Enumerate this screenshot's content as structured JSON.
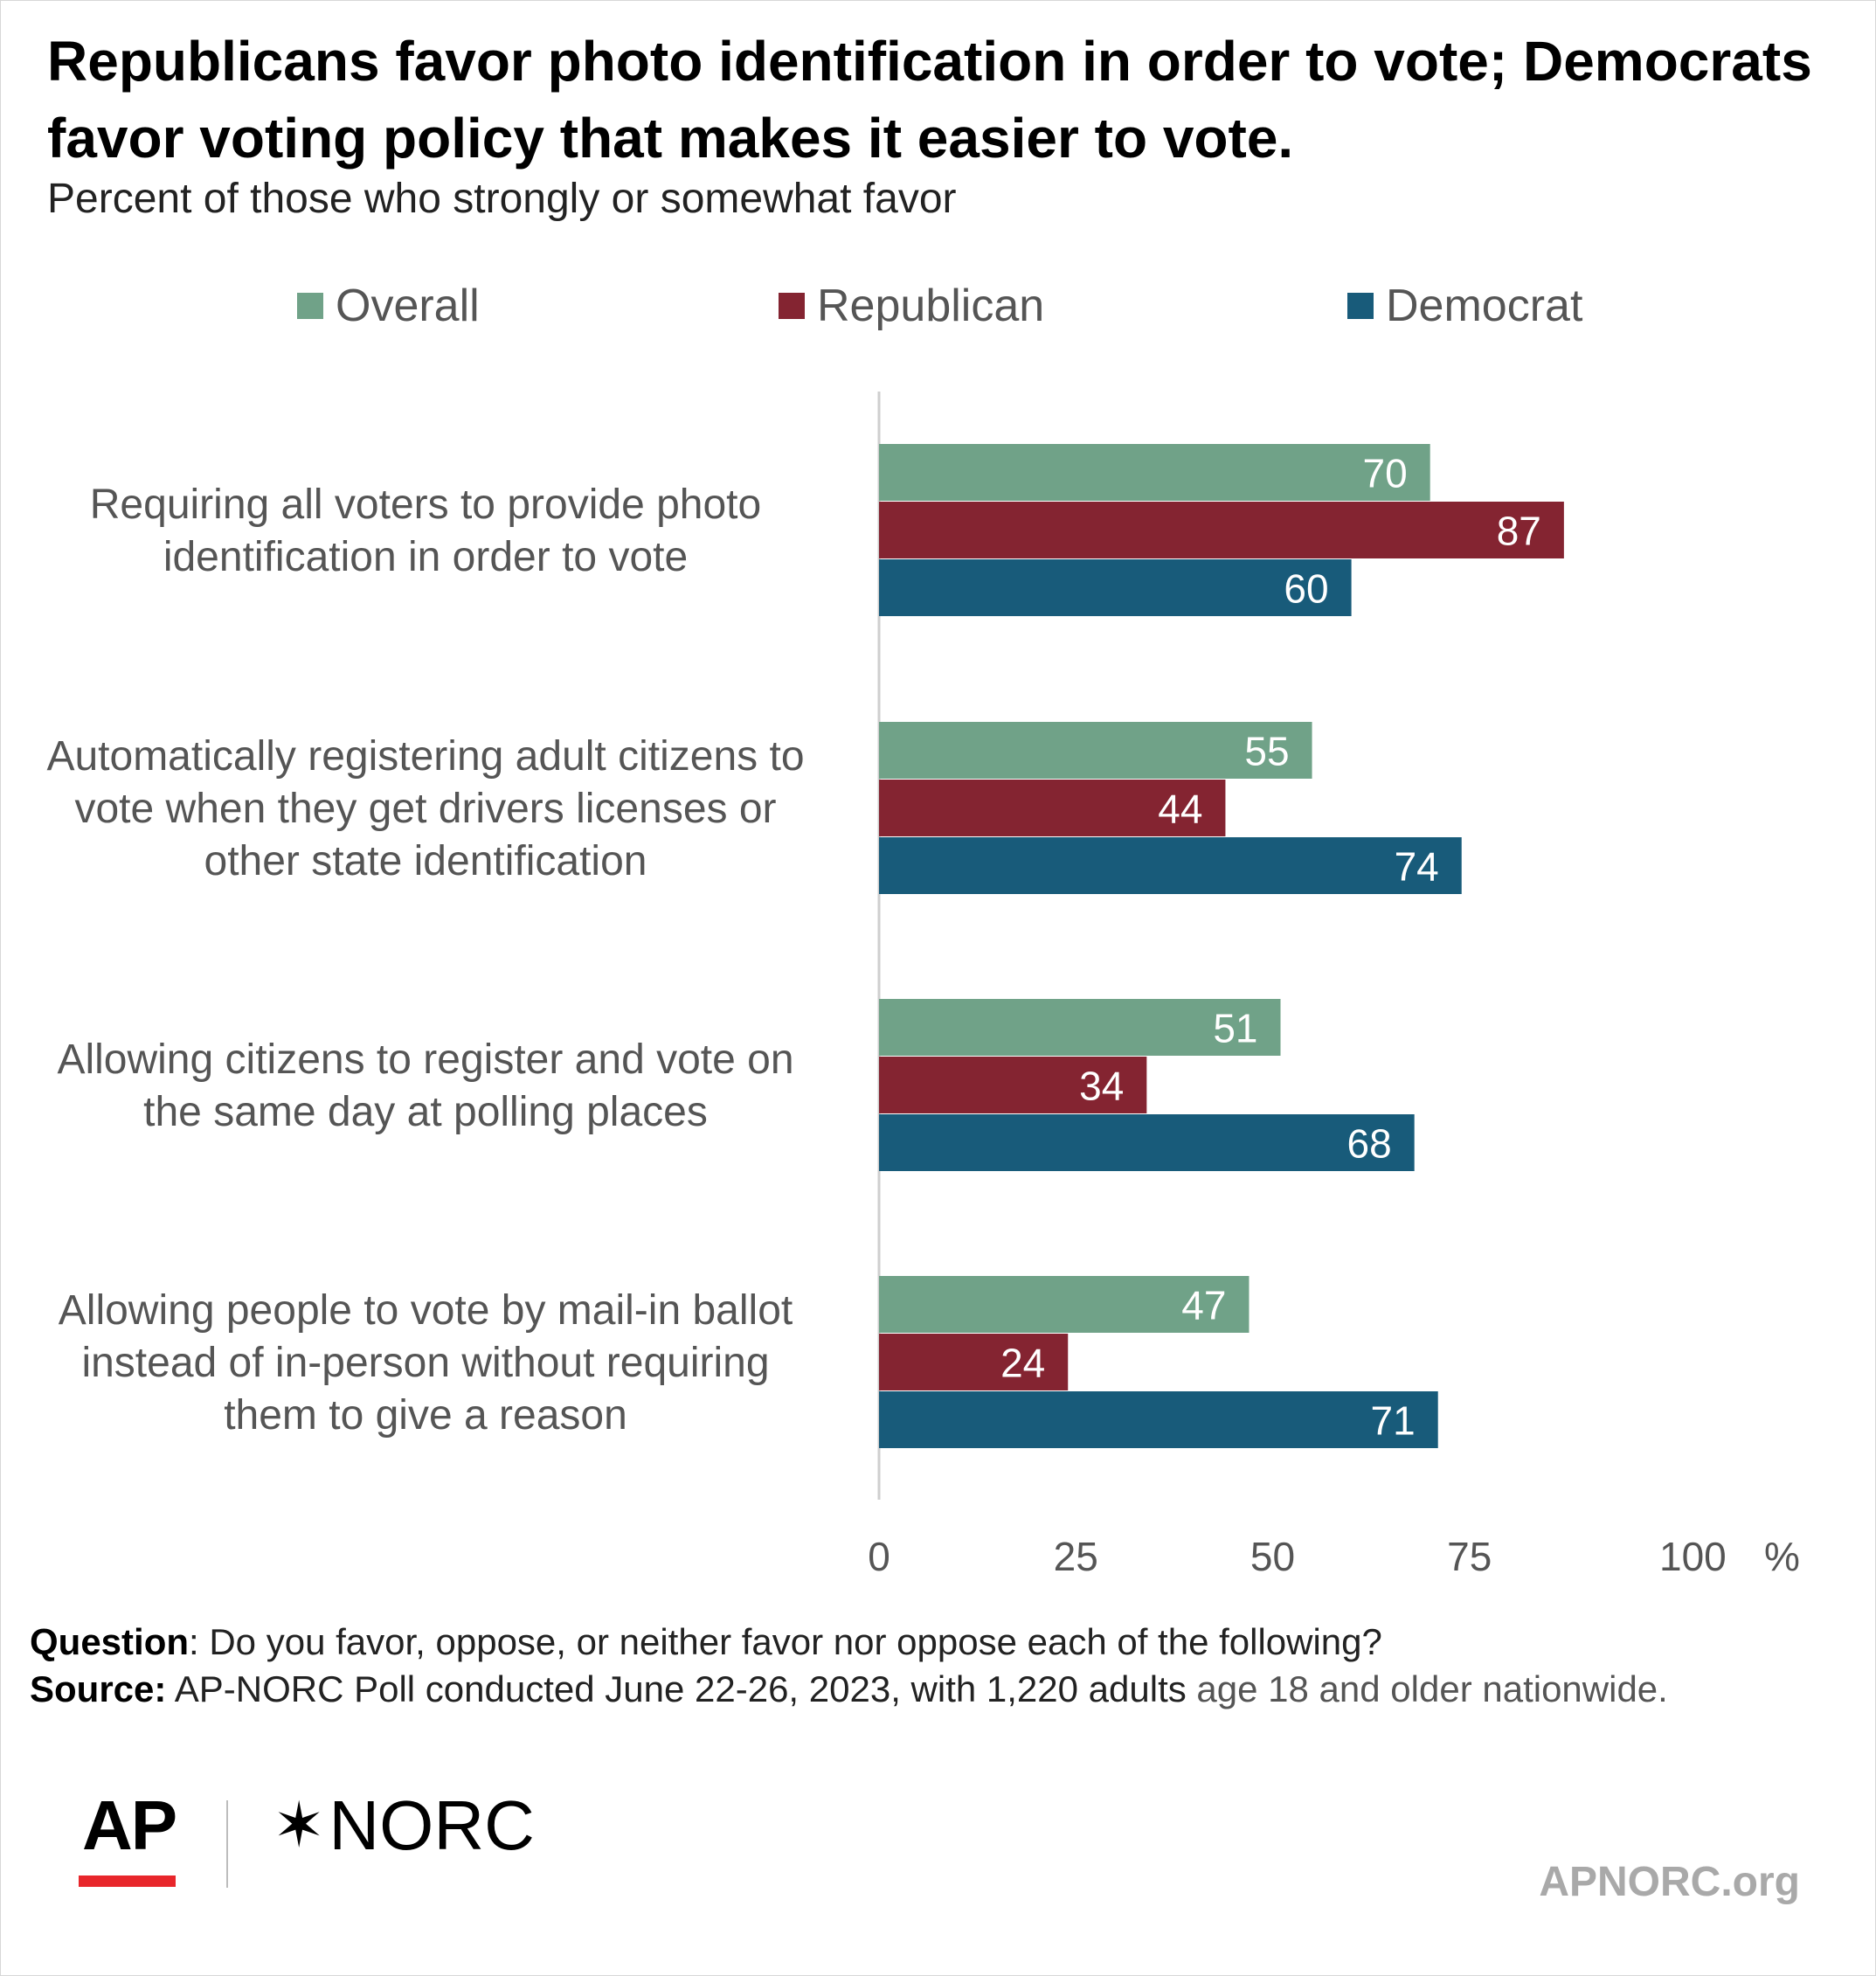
{
  "chart_data": {
    "type": "bar",
    "orientation": "horizontal",
    "title": "Republicans favor photo identification in order to vote; Democrats favor voting policy that makes it easier to vote.",
    "subtitle": "Percent of those who strongly or somewhat favor",
    "categories": [
      [
        "Requiring all voters to provide photo",
        "identification in order to vote"
      ],
      [
        "Automatically registering adult citizens to",
        "vote when they get drivers licenses or",
        "other state identification"
      ],
      [
        "Allowing citizens to register and vote on",
        "the same day at polling places"
      ],
      [
        "Allowing people to vote by mail-in ballot",
        "instead of in-person without requiring",
        "them to give a reason"
      ]
    ],
    "series": [
      {
        "name": "Overall",
        "color": "#70a288",
        "values": [
          70,
          55,
          51,
          47
        ]
      },
      {
        "name": "Republican",
        "color": "#842431",
        "values": [
          87,
          44,
          34,
          24
        ]
      },
      {
        "name": "Democrat",
        "color": "#185b7a",
        "values": [
          60,
          74,
          68,
          71
        ]
      }
    ],
    "xlim": [
      0,
      100
    ],
    "x_ticks": [
      "0",
      "25",
      "50",
      "75",
      "100"
    ],
    "x_unit": "%",
    "legend_position": "top",
    "grid": false
  },
  "footer": {
    "question_label": "Question",
    "question_text": ": Do you favor, oppose, or neither favor nor oppose each of the following?",
    "source_label": "Source:",
    "source_text": " AP-NORC Poll conducted June 22-26, 2023, with 1,220 adults",
    "source_text_muted": " age 18 and older nationwide."
  },
  "logos": {
    "ap": "AP",
    "norc": "NORC",
    "norc_star": "✶",
    "site": "APNORC.org"
  }
}
